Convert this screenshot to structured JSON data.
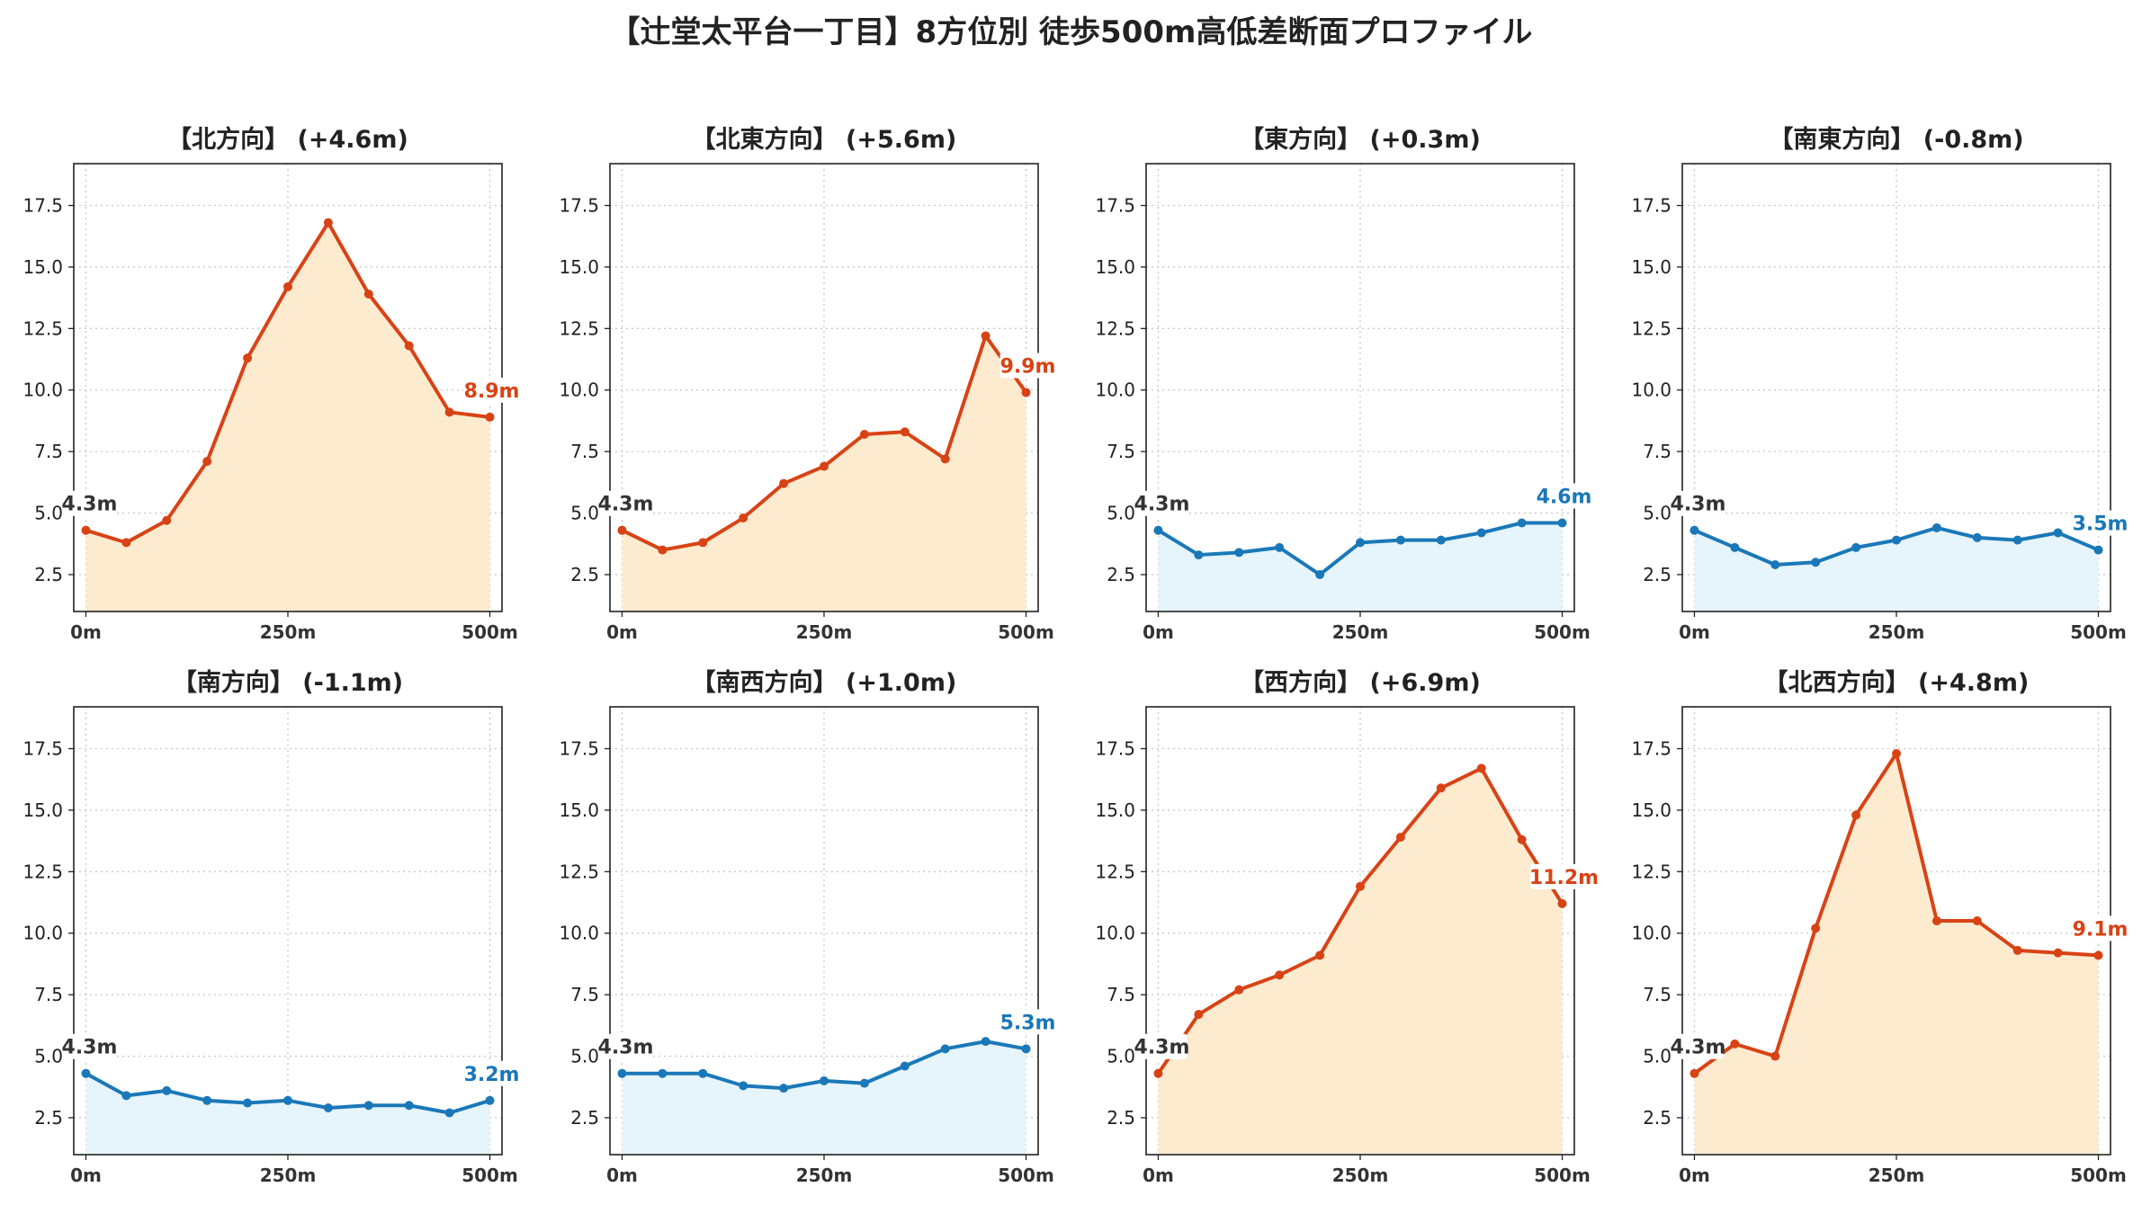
{
  "title": "【辻堂太平台一丁目】8方位別 徒歩500m高低差断面プロファイル",
  "colors": {
    "up_line": "#d84315",
    "up_fill": "#fdebd0",
    "down_line": "#1a78b8",
    "down_fill": "#e6f4fb",
    "start_label": "#333333"
  },
  "chart_data": [
    {
      "type": "line",
      "title": "【北方向】 (+4.6m)",
      "trend": "up",
      "x": [
        0,
        50,
        100,
        150,
        200,
        250,
        300,
        350,
        400,
        450,
        500
      ],
      "y": [
        4.3,
        3.8,
        4.7,
        7.1,
        11.3,
        14.2,
        16.8,
        13.9,
        11.8,
        9.1,
        8.9
      ],
      "start_label": "4.3m",
      "end_label": "8.9m",
      "xticks": [
        "0m",
        "250m",
        "500m"
      ],
      "yticks": [
        "2.5",
        "5.0",
        "7.5",
        "10.0",
        "12.5",
        "15.0",
        "17.5"
      ],
      "ylim": [
        1,
        19.2
      ],
      "xlim": [
        -15,
        515
      ],
      "grid": true
    },
    {
      "type": "line",
      "title": "【北東方向】 (+5.6m)",
      "trend": "up",
      "x": [
        0,
        50,
        100,
        150,
        200,
        250,
        300,
        350,
        400,
        450,
        500
      ],
      "y": [
        4.3,
        3.5,
        3.8,
        4.8,
        6.2,
        6.9,
        8.2,
        8.3,
        7.2,
        12.2,
        9.9
      ],
      "start_label": "4.3m",
      "end_label": "9.9m",
      "xticks": [
        "0m",
        "250m",
        "500m"
      ],
      "yticks": [
        "2.5",
        "5.0",
        "7.5",
        "10.0",
        "12.5",
        "15.0",
        "17.5"
      ],
      "ylim": [
        1,
        19.2
      ],
      "xlim": [
        -15,
        515
      ],
      "grid": true
    },
    {
      "type": "line",
      "title": "【東方向】 (+0.3m)",
      "trend": "down",
      "x": [
        0,
        50,
        100,
        150,
        200,
        250,
        300,
        350,
        400,
        450,
        500
      ],
      "y": [
        4.3,
        3.3,
        3.4,
        3.6,
        2.5,
        3.8,
        3.9,
        3.9,
        4.2,
        4.6,
        4.6
      ],
      "start_label": "4.3m",
      "end_label": "4.6m",
      "xticks": [
        "0m",
        "250m",
        "500m"
      ],
      "yticks": [
        "2.5",
        "5.0",
        "7.5",
        "10.0",
        "12.5",
        "15.0",
        "17.5"
      ],
      "ylim": [
        1,
        19.2
      ],
      "xlim": [
        -15,
        515
      ],
      "grid": true
    },
    {
      "type": "line",
      "title": "【南東方向】 (-0.8m)",
      "trend": "down",
      "x": [
        0,
        50,
        100,
        150,
        200,
        250,
        300,
        350,
        400,
        450,
        500
      ],
      "y": [
        4.3,
        3.6,
        2.9,
        3.0,
        3.6,
        3.9,
        4.4,
        4.0,
        3.9,
        4.2,
        3.5
      ],
      "start_label": "4.3m",
      "end_label": "3.5m",
      "xticks": [
        "0m",
        "250m",
        "500m"
      ],
      "yticks": [
        "2.5",
        "5.0",
        "7.5",
        "10.0",
        "12.5",
        "15.0",
        "17.5"
      ],
      "ylim": [
        1,
        19.2
      ],
      "xlim": [
        -15,
        515
      ],
      "grid": true
    },
    {
      "type": "line",
      "title": "【南方向】 (-1.1m)",
      "trend": "down",
      "x": [
        0,
        50,
        100,
        150,
        200,
        250,
        300,
        350,
        400,
        450,
        500
      ],
      "y": [
        4.3,
        3.4,
        3.6,
        3.2,
        3.1,
        3.2,
        2.9,
        3.0,
        3.0,
        2.7,
        3.2
      ],
      "start_label": "4.3m",
      "end_label": "3.2m",
      "xticks": [
        "0m",
        "250m",
        "500m"
      ],
      "yticks": [
        "2.5",
        "5.0",
        "7.5",
        "10.0",
        "12.5",
        "15.0",
        "17.5"
      ],
      "ylim": [
        1,
        19.2
      ],
      "xlim": [
        -15,
        515
      ],
      "grid": true
    },
    {
      "type": "line",
      "title": "【南西方向】 (+1.0m)",
      "trend": "down",
      "x": [
        0,
        50,
        100,
        150,
        200,
        250,
        300,
        350,
        400,
        450,
        500
      ],
      "y": [
        4.3,
        4.3,
        4.3,
        3.8,
        3.7,
        4.0,
        3.9,
        4.6,
        5.3,
        5.6,
        5.3
      ],
      "start_label": "4.3m",
      "end_label": "5.3m",
      "xticks": [
        "0m",
        "250m",
        "500m"
      ],
      "yticks": [
        "2.5",
        "5.0",
        "7.5",
        "10.0",
        "12.5",
        "15.0",
        "17.5"
      ],
      "ylim": [
        1,
        19.2
      ],
      "xlim": [
        -15,
        515
      ],
      "grid": true
    },
    {
      "type": "line",
      "title": "【西方向】 (+6.9m)",
      "trend": "up",
      "x": [
        0,
        50,
        100,
        150,
        200,
        250,
        300,
        350,
        400,
        450,
        500
      ],
      "y": [
        4.3,
        6.7,
        7.7,
        8.3,
        9.1,
        11.9,
        13.9,
        15.9,
        16.7,
        13.8,
        11.2
      ],
      "start_label": "4.3m",
      "end_label": "11.2m",
      "xticks": [
        "0m",
        "250m",
        "500m"
      ],
      "yticks": [
        "2.5",
        "5.0",
        "7.5",
        "10.0",
        "12.5",
        "15.0",
        "17.5"
      ],
      "ylim": [
        1,
        19.2
      ],
      "xlim": [
        -15,
        515
      ],
      "grid": true
    },
    {
      "type": "line",
      "title": "【北西方向】 (+4.8m)",
      "trend": "up",
      "x": [
        0,
        50,
        100,
        150,
        200,
        250,
        300,
        350,
        400,
        450,
        500
      ],
      "y": [
        4.3,
        5.5,
        5.0,
        10.2,
        14.8,
        17.3,
        10.5,
        10.5,
        9.3,
        9.2,
        9.1
      ],
      "start_label": "4.3m",
      "end_label": "9.1m",
      "xticks": [
        "0m",
        "250m",
        "500m"
      ],
      "yticks": [
        "2.5",
        "5.0",
        "7.5",
        "10.0",
        "12.5",
        "15.0",
        "17.5"
      ],
      "ylim": [
        1,
        19.2
      ],
      "xlim": [
        -15,
        515
      ],
      "grid": true
    }
  ]
}
